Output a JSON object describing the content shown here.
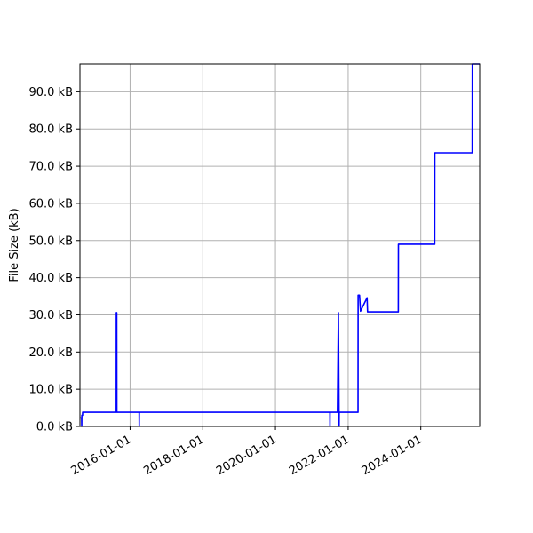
{
  "chart_data": {
    "type": "line",
    "title": "",
    "xlabel": "",
    "ylabel": "File Size (kB)",
    "xlim": [
      "2014-08-15",
      "2025-08-15"
    ],
    "ylim": [
      0,
      97.5
    ],
    "grid": true,
    "legend": "none",
    "colors": {
      "line": "#0000ff",
      "grid": "#b0b0b0",
      "axes": "#000000"
    },
    "x_ticks": [
      "2016-01-01",
      "2018-01-01",
      "2020-01-01",
      "2022-01-01",
      "2024-01-01"
    ],
    "y_ticks": [
      0,
      10,
      20,
      30,
      40,
      50,
      60,
      70,
      80,
      90
    ],
    "y_tick_labels": [
      "0.0 kB",
      "10.0 kB",
      "20.0 kB",
      "30.0 kB",
      "40.0 kB",
      "50.0 kB",
      "60.0 kB",
      "70.0 kB",
      "80.0 kB",
      "90.0 kB"
    ],
    "series": [
      {
        "color": "#0000ff",
        "x": [
          "2014-08-15",
          "2014-09-01",
          "2014-09-02",
          "2014-09-03",
          "2014-09-10",
          "2014-09-11",
          "2015-08-15",
          "2015-08-16",
          "2015-08-20",
          "2015-08-21",
          "2016-04-01",
          "2016-04-02",
          "2016-04-03",
          "2021-07-01",
          "2021-07-02",
          "2021-07-03",
          "2021-09-15",
          "2021-09-25",
          "2021-10-01",
          "2021-10-02",
          "2021-10-03",
          "2022-04-10",
          "2022-04-11",
          "2022-04-25",
          "2022-05-05",
          "2022-07-10",
          "2022-07-15",
          "2023-05-20",
          "2023-05-21",
          "2024-05-20",
          "2024-05-21",
          "2025-06-01",
          "2025-06-02",
          "2025-08-15"
        ],
        "y": [
          2.3,
          2.3,
          0,
          3.0,
          3.0,
          3.8,
          3.8,
          30.6,
          30.6,
          3.8,
          3.8,
          0,
          3.8,
          3.8,
          0,
          3.8,
          3.8,
          30.6,
          3.8,
          0,
          3.8,
          3.8,
          35.3,
          35.3,
          31.0,
          34.6,
          30.8,
          30.8,
          49.0,
          49.0,
          73.6,
          73.6,
          97.5,
          97.5
        ]
      }
    ]
  }
}
